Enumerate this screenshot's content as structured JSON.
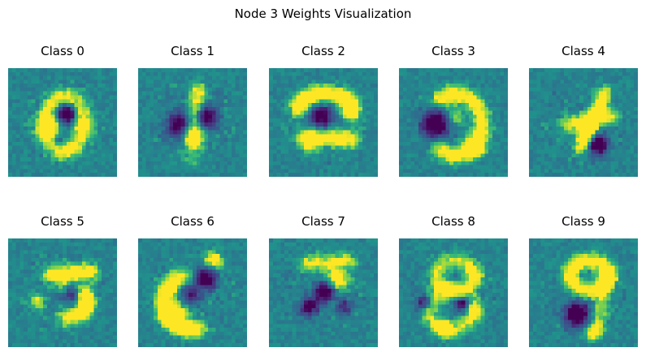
{
  "figure": {
    "title": "Node 3 Weights Visualization"
  },
  "chart_data": {
    "type": "heatmap",
    "title": "Node 3 Weights Visualization",
    "grid": false,
    "layout": "2 rows x 5 columns",
    "colormap": "viridis",
    "image_resolution": "28x28",
    "panels": [
      {
        "title": "Class 0",
        "digit": "0"
      },
      {
        "title": "Class 1",
        "digit": "1"
      },
      {
        "title": "Class 2",
        "digit": "2"
      },
      {
        "title": "Class 3",
        "digit": "3"
      },
      {
        "title": "Class 4",
        "digit": "4"
      },
      {
        "title": "Class 5",
        "digit": "5"
      },
      {
        "title": "Class 6",
        "digit": "6"
      },
      {
        "title": "Class 7",
        "digit": "7"
      },
      {
        "title": "Class 8",
        "digit": "8"
      },
      {
        "title": "Class 9",
        "digit": "9"
      }
    ]
  }
}
